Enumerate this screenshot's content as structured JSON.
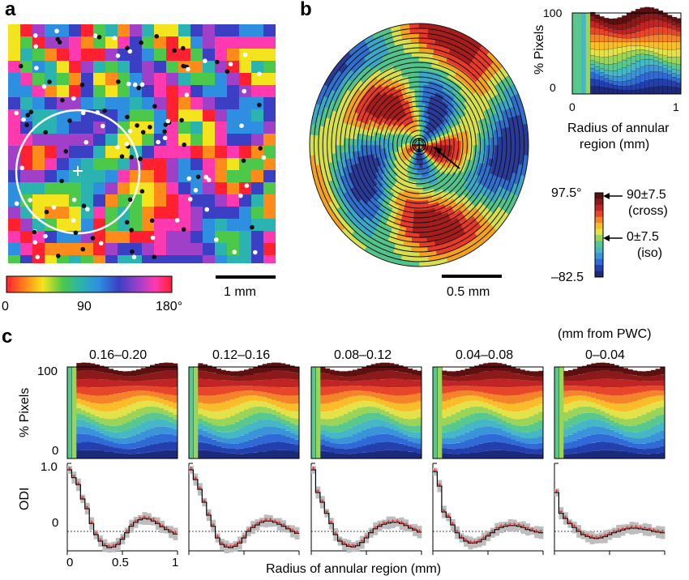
{
  "panel_a": {
    "letter": "a",
    "scalebar_label": "1 mm",
    "hue_ticks": [
      "0",
      "90",
      "180°"
    ]
  },
  "panel_b": {
    "letter": "b",
    "scalebar_label": "0.5 mm",
    "inset_ylabel": "% Pixels",
    "inset_yticks": [
      "100",
      "0"
    ],
    "inset_xticks": [
      "0",
      "1"
    ],
    "inset_xlabel_line1": "Radius of annular",
    "inset_xlabel_line2": "region (mm)",
    "colorbar_top": "97.5°",
    "colorbar_bottom": "–82.5",
    "cross_line1": "90±7.5",
    "cross_line2": "(cross)",
    "iso_line1": "0±7.5",
    "iso_line2": "(iso)"
  },
  "panel_c": {
    "letter": "c",
    "header_note": "(mm from PWC)",
    "panel_titles": [
      "0.16–0.20",
      "0.12–0.16",
      "0.08–0.12",
      "0.04–0.08",
      "0–0.04"
    ],
    "top_ylabel": "% Pixels",
    "top_yticks": [
      "100",
      "0"
    ],
    "bottom_ylabel": "ODI",
    "bottom_yticks": [
      "1.0",
      "0"
    ],
    "xticks": [
      "0",
      "0.5",
      "1"
    ],
    "xlabel": "Radius of annular region (mm)"
  },
  "colors": {
    "cross": "#7a1d1d",
    "iso": "#38a88e",
    "marker": "#e02020",
    "band": "#bdbdbd"
  },
  "chart_data": [
    {
      "type": "line",
      "title": "0.16–0.20",
      "xlabel": "Radius of annular region (mm)",
      "ylabel": "ODI",
      "x": [
        0.02,
        0.06,
        0.1,
        0.14,
        0.18,
        0.22,
        0.26,
        0.3,
        0.34,
        0.38,
        0.42,
        0.46,
        0.5,
        0.54,
        0.58,
        0.62,
        0.66,
        0.7,
        0.74,
        0.78,
        0.82,
        0.86,
        0.9,
        0.94,
        0.98
      ],
      "values": [
        0.95,
        0.83,
        0.72,
        0.5,
        0.35,
        0.12,
        -0.05,
        -0.15,
        -0.22,
        -0.25,
        -0.24,
        -0.2,
        -0.12,
        -0.02,
        0.08,
        0.14,
        0.18,
        0.2,
        0.19,
        0.16,
        0.12,
        0.07,
        0.03,
        -0.01,
        -0.04
      ],
      "xlim": [
        0,
        1
      ],
      "ylim": [
        -0.3,
        1.05
      ]
    },
    {
      "type": "line",
      "title": "0.12–0.16",
      "xlabel": "Radius of annular region (mm)",
      "ylabel": "ODI",
      "x": [
        0.02,
        0.06,
        0.1,
        0.14,
        0.18,
        0.22,
        0.26,
        0.3,
        0.34,
        0.38,
        0.42,
        0.46,
        0.5,
        0.54,
        0.58,
        0.62,
        0.66,
        0.7,
        0.74,
        0.78,
        0.82,
        0.86,
        0.9,
        0.94,
        0.98
      ],
      "values": [
        0.95,
        0.8,
        0.65,
        0.45,
        0.25,
        0.08,
        -0.1,
        -0.2,
        -0.24,
        -0.25,
        -0.23,
        -0.18,
        -0.1,
        0.0,
        0.06,
        0.1,
        0.14,
        0.16,
        0.16,
        0.14,
        0.11,
        0.08,
        0.04,
        0.0,
        -0.03
      ],
      "xlim": [
        0,
        1
      ],
      "ylim": [
        -0.3,
        1.05
      ]
    },
    {
      "type": "line",
      "title": "0.08–0.12",
      "xlabel": "Radius of annular region (mm)",
      "ylabel": "ODI",
      "x": [
        0.02,
        0.06,
        0.1,
        0.14,
        0.18,
        0.22,
        0.26,
        0.3,
        0.34,
        0.38,
        0.42,
        0.46,
        0.5,
        0.54,
        0.58,
        0.62,
        0.66,
        0.7,
        0.74,
        0.78,
        0.82,
        0.86,
        0.9,
        0.94,
        0.98
      ],
      "values": [
        0.95,
        0.6,
        0.45,
        0.28,
        0.12,
        -0.05,
        -0.15,
        -0.2,
        -0.23,
        -0.24,
        -0.22,
        -0.17,
        -0.1,
        -0.02,
        0.04,
        0.08,
        0.11,
        0.13,
        0.14,
        0.14,
        0.12,
        0.09,
        0.05,
        0.02,
        -0.01
      ],
      "xlim": [
        0,
        1
      ],
      "ylim": [
        -0.3,
        1.05
      ]
    },
    {
      "type": "line",
      "title": "0.04–0.08",
      "xlabel": "Radius of annular region (mm)",
      "ylabel": "ODI",
      "x": [
        0.02,
        0.06,
        0.1,
        0.14,
        0.18,
        0.22,
        0.26,
        0.3,
        0.34,
        0.38,
        0.42,
        0.46,
        0.5,
        0.54,
        0.58,
        0.62,
        0.66,
        0.7,
        0.74,
        0.78,
        0.82,
        0.86,
        0.9,
        0.94,
        0.98
      ],
      "values": [
        0.92,
        0.7,
        0.3,
        0.22,
        0.1,
        -0.02,
        -0.1,
        -0.15,
        -0.18,
        -0.18,
        -0.16,
        -0.12,
        -0.07,
        -0.02,
        0.03,
        0.06,
        0.08,
        0.09,
        0.09,
        0.08,
        0.06,
        0.03,
        0.01,
        -0.01,
        -0.02
      ],
      "xlim": [
        0,
        1
      ],
      "ylim": [
        -0.3,
        1.05
      ]
    },
    {
      "type": "line",
      "title": "0–0.04",
      "xlabel": "Radius of annular region (mm)",
      "ylabel": "ODI",
      "x": [
        0.02,
        0.06,
        0.1,
        0.14,
        0.18,
        0.22,
        0.26,
        0.3,
        0.34,
        0.38,
        0.42,
        0.46,
        0.5,
        0.54,
        0.58,
        0.62,
        0.66,
        0.7,
        0.74,
        0.78,
        0.82,
        0.86,
        0.9,
        0.94,
        0.98
      ],
      "values": [
        0.6,
        0.28,
        0.2,
        0.12,
        0.06,
        0.0,
        -0.05,
        -0.08,
        -0.1,
        -0.11,
        -0.1,
        -0.08,
        -0.05,
        -0.02,
        0.0,
        0.02,
        0.04,
        0.05,
        0.05,
        0.04,
        0.03,
        0.02,
        0.0,
        -0.01,
        -0.02
      ],
      "xlim": [
        0,
        1
      ],
      "ylim": [
        -0.3,
        1.05
      ]
    }
  ]
}
